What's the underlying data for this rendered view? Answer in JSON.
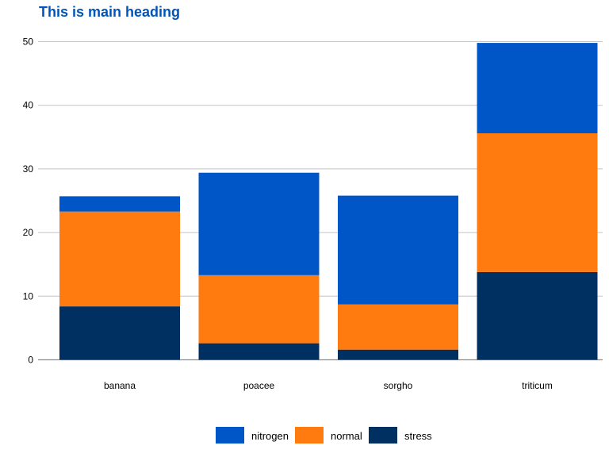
{
  "chart_data": {
    "type": "bar",
    "stacked": true,
    "title": "This is main heading",
    "xlabel": "",
    "ylabel": "",
    "categories": [
      "banana",
      "poacee",
      "sorgho",
      "triticum"
    ],
    "series": [
      {
        "name": "stress",
        "color": "#002f62",
        "values": [
          8.4,
          2.6,
          1.6,
          13.8
        ]
      },
      {
        "name": "normal",
        "color": "#ff7a0f",
        "values": [
          14.9,
          10.7,
          7.1,
          21.8
        ]
      },
      {
        "name": "nitrogen",
        "color": "#0055c7",
        "values": [
          2.4,
          16.1,
          17.1,
          14.2
        ]
      }
    ],
    "ylim": [
      0,
      50
    ],
    "yticks": [
      0,
      10,
      20,
      30,
      40,
      50
    ],
    "grid": true,
    "legend_position": "bottom",
    "legend_order": [
      "nitrogen",
      "normal",
      "stress"
    ]
  }
}
